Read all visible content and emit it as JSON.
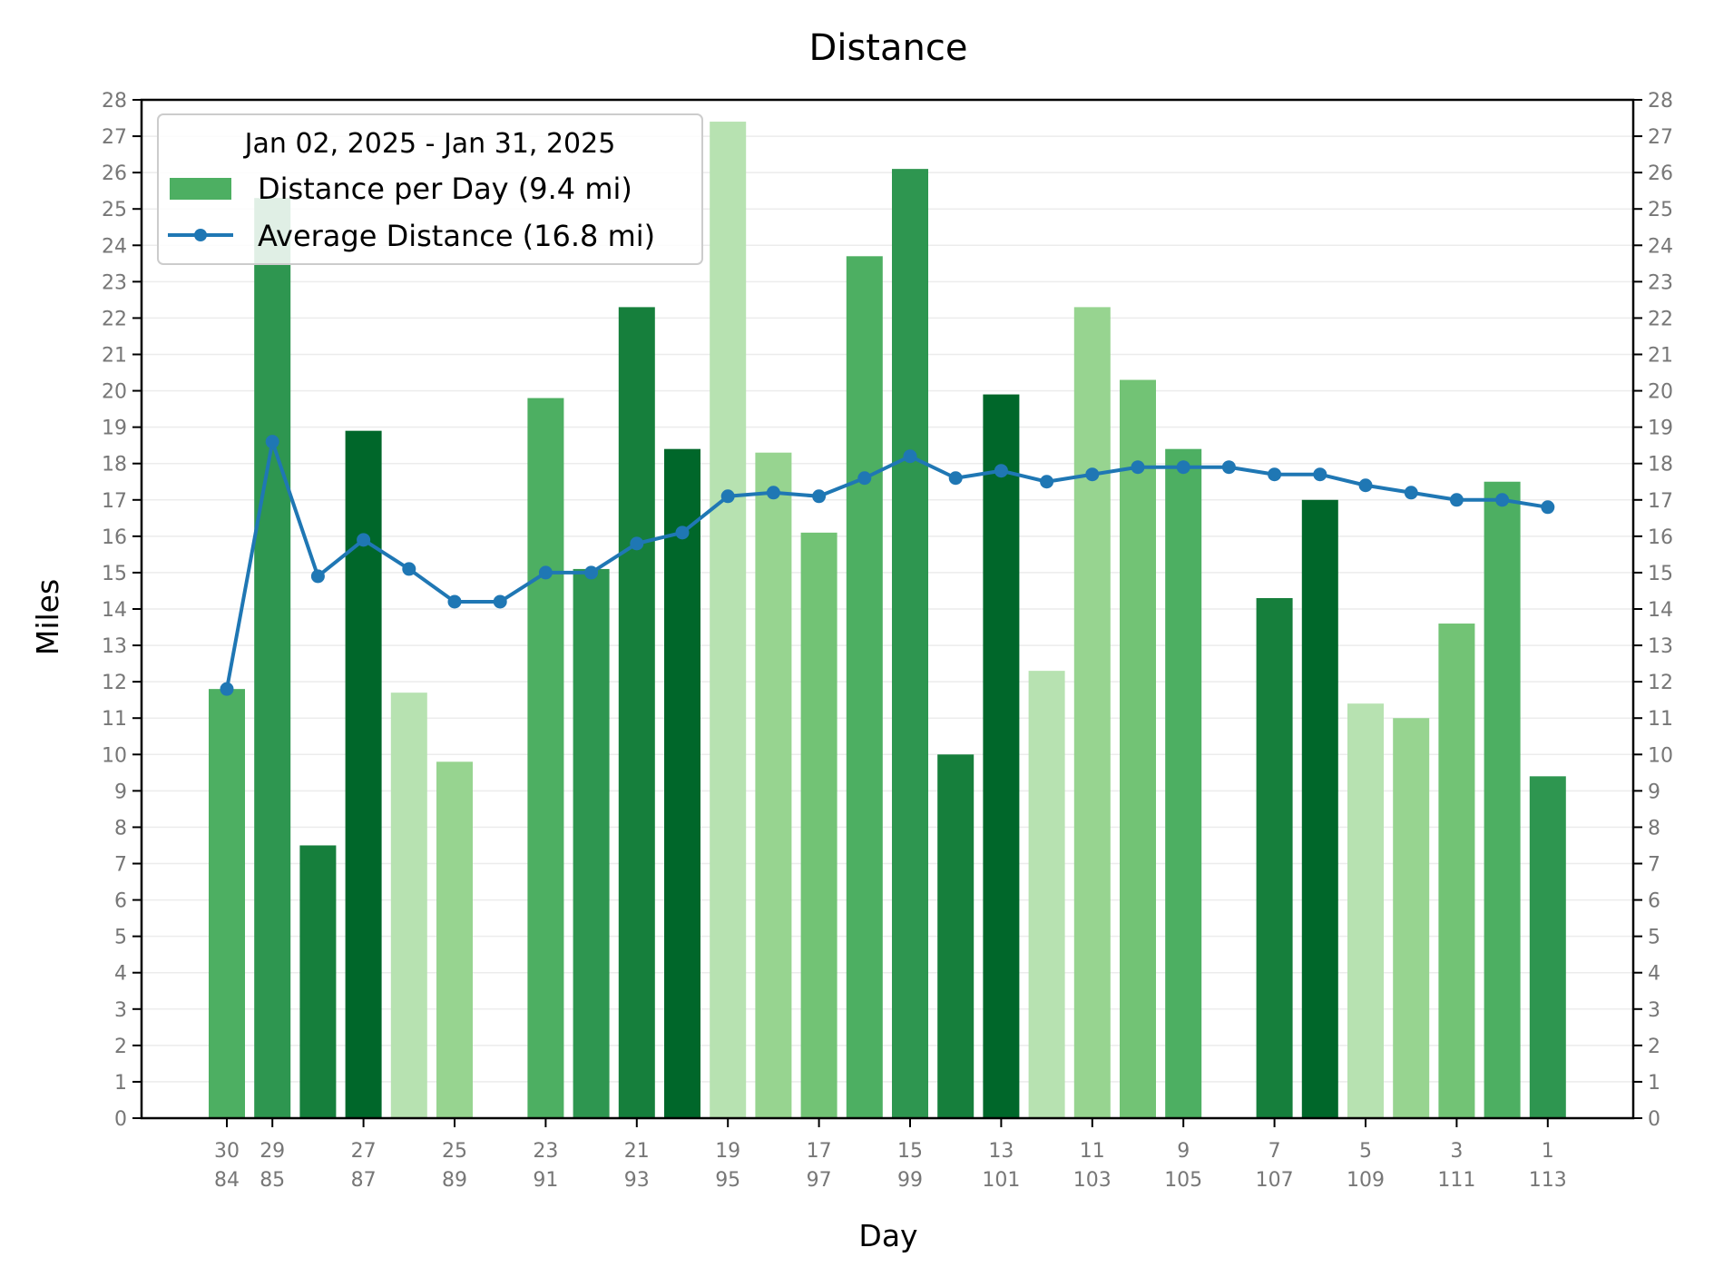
{
  "chart_data": {
    "type": "bar",
    "title": "Distance",
    "xlabel": "Day",
    "ylabel": "Miles",
    "ylim": [
      0,
      28
    ],
    "yticks": [
      0,
      1,
      2,
      3,
      4,
      5,
      6,
      7,
      8,
      9,
      10,
      11,
      12,
      13,
      14,
      15,
      16,
      17,
      18,
      19,
      20,
      21,
      22,
      23,
      24,
      25,
      26,
      27,
      28
    ],
    "grid": "horizontal",
    "legend_position": "top-left",
    "legend": {
      "title": "Jan 02, 2025 - Jan 31, 2025",
      "bar_label": "Distance per Day (9.4 mi)",
      "line_label": "Average Distance (16.8 mi)"
    },
    "xtick_labels": [
      {
        "day": 30,
        "line1": "30",
        "line2": "84"
      },
      {
        "day": 29,
        "line1": "29",
        "line2": "85"
      },
      {
        "day": 27,
        "line1": "27",
        "line2": "87"
      },
      {
        "day": 25,
        "line1": "25",
        "line2": "89"
      },
      {
        "day": 23,
        "line1": "23",
        "line2": "91"
      },
      {
        "day": 21,
        "line1": "21",
        "line2": "93"
      },
      {
        "day": 19,
        "line1": "19",
        "line2": "95"
      },
      {
        "day": 17,
        "line1": "17",
        "line2": "97"
      },
      {
        "day": 15,
        "line1": "15",
        "line2": "99"
      },
      {
        "day": 13,
        "line1": "13",
        "line2": "101"
      },
      {
        "day": 11,
        "line1": "11",
        "line2": "103"
      },
      {
        "day": 9,
        "line1": "9",
        "line2": "105"
      },
      {
        "day": 7,
        "line1": "7",
        "line2": "107"
      },
      {
        "day": 5,
        "line1": "5",
        "line2": "109"
      },
      {
        "day": 3,
        "line1": "3",
        "line2": "111"
      },
      {
        "day": 1,
        "line1": "1",
        "line2": "113"
      }
    ],
    "series": [
      {
        "name": "Distance per Day",
        "type": "bar",
        "points": [
          {
            "day": 30,
            "value": 11.8,
            "color": "#4daf62"
          },
          {
            "day": 29,
            "value": 25.3,
            "color": "#2e9650"
          },
          {
            "day": 28,
            "value": 7.5,
            "color": "#167f3c"
          },
          {
            "day": 27,
            "value": 18.9,
            "color": "#00672a"
          },
          {
            "day": 26,
            "value": 11.7,
            "color": "#b7e2b1"
          },
          {
            "day": 25,
            "value": 9.8,
            "color": "#97d490"
          },
          {
            "day": 23,
            "value": 19.8,
            "color": "#4daf62"
          },
          {
            "day": 22,
            "value": 15.1,
            "color": "#2e9650"
          },
          {
            "day": 21,
            "value": 22.3,
            "color": "#167f3c"
          },
          {
            "day": 20,
            "value": 18.4,
            "color": "#00672a"
          },
          {
            "day": 19,
            "value": 27.4,
            "color": "#b7e2b1"
          },
          {
            "day": 18,
            "value": 18.3,
            "color": "#97d490"
          },
          {
            "day": 17,
            "value": 16.1,
            "color": "#72c375"
          },
          {
            "day": 16,
            "value": 23.7,
            "color": "#4daf62"
          },
          {
            "day": 15,
            "value": 26.1,
            "color": "#2e9650"
          },
          {
            "day": 14,
            "value": 10.0,
            "color": "#167f3c"
          },
          {
            "day": 13,
            "value": 19.9,
            "color": "#00672a"
          },
          {
            "day": 12,
            "value": 12.3,
            "color": "#b7e2b1"
          },
          {
            "day": 11,
            "value": 22.3,
            "color": "#97d490"
          },
          {
            "day": 10,
            "value": 20.3,
            "color": "#72c375"
          },
          {
            "day": 9,
            "value": 18.4,
            "color": "#4daf62"
          },
          {
            "day": 7,
            "value": 14.3,
            "color": "#167f3c"
          },
          {
            "day": 6,
            "value": 17.0,
            "color": "#00672a"
          },
          {
            "day": 5,
            "value": 11.4,
            "color": "#b7e2b1"
          },
          {
            "day": 4,
            "value": 11.0,
            "color": "#97d490"
          },
          {
            "day": 3,
            "value": 13.6,
            "color": "#72c375"
          },
          {
            "day": 2,
            "value": 17.5,
            "color": "#4daf62"
          },
          {
            "day": 1,
            "value": 9.4,
            "color": "#2e9650"
          }
        ]
      },
      {
        "name": "Average Distance",
        "type": "line",
        "color": "#1f77b4",
        "points": [
          {
            "day": 30,
            "value": 11.8
          },
          {
            "day": 29,
            "value": 18.6
          },
          {
            "day": 28,
            "value": 14.9
          },
          {
            "day": 27,
            "value": 15.9
          },
          {
            "day": 26,
            "value": 15.1
          },
          {
            "day": 25,
            "value": 14.2
          },
          {
            "day": 24,
            "value": 14.2
          },
          {
            "day": 23,
            "value": 15.0
          },
          {
            "day": 22,
            "value": 15.0
          },
          {
            "day": 21,
            "value": 15.8
          },
          {
            "day": 20,
            "value": 16.1
          },
          {
            "day": 19,
            "value": 17.1
          },
          {
            "day": 18,
            "value": 17.2
          },
          {
            "day": 17,
            "value": 17.1
          },
          {
            "day": 16,
            "value": 17.6
          },
          {
            "day": 15,
            "value": 18.2
          },
          {
            "day": 14,
            "value": 17.6
          },
          {
            "day": 13,
            "value": 17.8
          },
          {
            "day": 12,
            "value": 17.5
          },
          {
            "day": 11,
            "value": 17.7
          },
          {
            "day": 10,
            "value": 17.9
          },
          {
            "day": 9,
            "value": 17.9
          },
          {
            "day": 8,
            "value": 17.9
          },
          {
            "day": 7,
            "value": 17.7
          },
          {
            "day": 6,
            "value": 17.7
          },
          {
            "day": 5,
            "value": 17.4
          },
          {
            "day": 4,
            "value": 17.2
          },
          {
            "day": 3,
            "value": 17.0
          },
          {
            "day": 2,
            "value": 17.0
          },
          {
            "day": 1,
            "value": 16.8
          }
        ]
      }
    ]
  }
}
